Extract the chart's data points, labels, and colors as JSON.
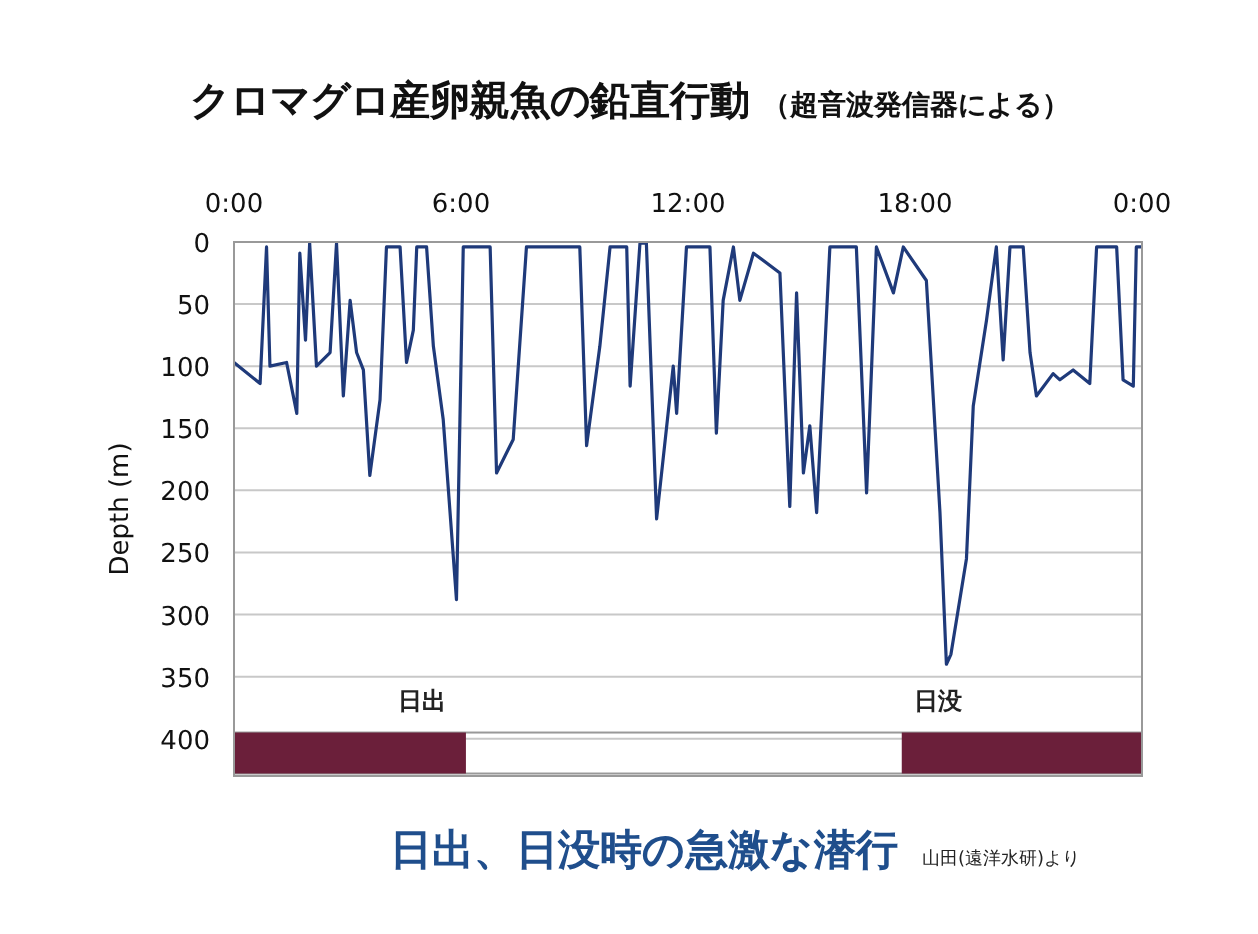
{
  "chart_data": {
    "type": "line",
    "title": "クロマグロ産卵親魚の鉛直行動",
    "subtitle": "（超音波発信器による）",
    "ylabel": "Depth (m)",
    "annotations": [
      "日出、日没時の急激な潜行",
      "山田(遠洋水研)より"
    ],
    "xlim": [
      0,
      24
    ],
    "xticks": [
      {
        "value": 0,
        "label": "0:00"
      },
      {
        "value": 6,
        "label": "6:00"
      },
      {
        "value": 12,
        "label": "12:00"
      },
      {
        "value": 18,
        "label": "18:00"
      },
      {
        "value": 24,
        "label": "0:00"
      }
    ],
    "ylim": [
      430,
      0
    ],
    "yticks": [
      0,
      50,
      100,
      150,
      200,
      250,
      300,
      350,
      400
    ],
    "grid": "y",
    "marker": "none",
    "line_style": "solid",
    "bands": [
      {
        "axis": "x",
        "from": 0,
        "to": 6.13,
        "color": "#6b1f3a",
        "label": "日出"
      },
      {
        "axis": "x",
        "from": 17.65,
        "to": 24,
        "color": "#6b1f3a",
        "label": "日没"
      }
    ],
    "series": [
      {
        "color": "#1f3a7a",
        "x": [
          0,
          0.69,
          0.86,
          0.95,
          1.39,
          1.66,
          1.74,
          1.89,
          2.0,
          2.18,
          2.54,
          2.71,
          2.89,
          3.07,
          3.24,
          3.42,
          3.59,
          3.86,
          4.03,
          4.39,
          4.56,
          4.74,
          4.83,
          5.09,
          5.27,
          5.53,
          5.88,
          6.06,
          6.77,
          6.94,
          7.38,
          7.73,
          9.14,
          9.32,
          9.67,
          9.94,
          10.38,
          10.47,
          10.73,
          10.9,
          11.17,
          11.61,
          11.7,
          11.96,
          12.58,
          12.75,
          12.93,
          13.2,
          13.37,
          13.73,
          14.43,
          14.69,
          14.87,
          15.05,
          15.22,
          15.4,
          15.75,
          16.45,
          16.72,
          16.98,
          17.43,
          17.69,
          18.3,
          18.66,
          18.83,
          18.95,
          19.36,
          19.54,
          19.89,
          20.15,
          20.33,
          20.51,
          20.86,
          21.04,
          21.21,
          21.65,
          21.83,
          22.18,
          22.62,
          22.8,
          23.33,
          23.5,
          23.77,
          23.85,
          24
        ],
        "values": [
          97,
          114,
          4,
          100,
          97,
          138,
          9,
          79,
          1,
          100,
          89,
          1,
          124,
          47,
          89,
          103,
          188,
          127,
          4,
          4,
          97,
          71,
          4,
          4,
          84,
          143,
          288,
          4,
          4,
          186,
          159,
          4,
          4,
          164,
          84,
          4,
          4,
          116,
          1,
          1,
          223,
          100,
          138,
          4,
          4,
          154,
          47,
          4,
          47,
          9,
          25,
          213,
          41,
          186,
          148,
          218,
          4,
          4,
          202,
          4,
          41,
          4,
          31,
          218,
          340,
          332,
          255,
          132,
          63,
          4,
          95,
          4,
          4,
          89,
          124,
          106,
          111,
          103,
          114,
          4,
          4,
          111,
          116,
          4,
          4
        ]
      }
    ]
  }
}
